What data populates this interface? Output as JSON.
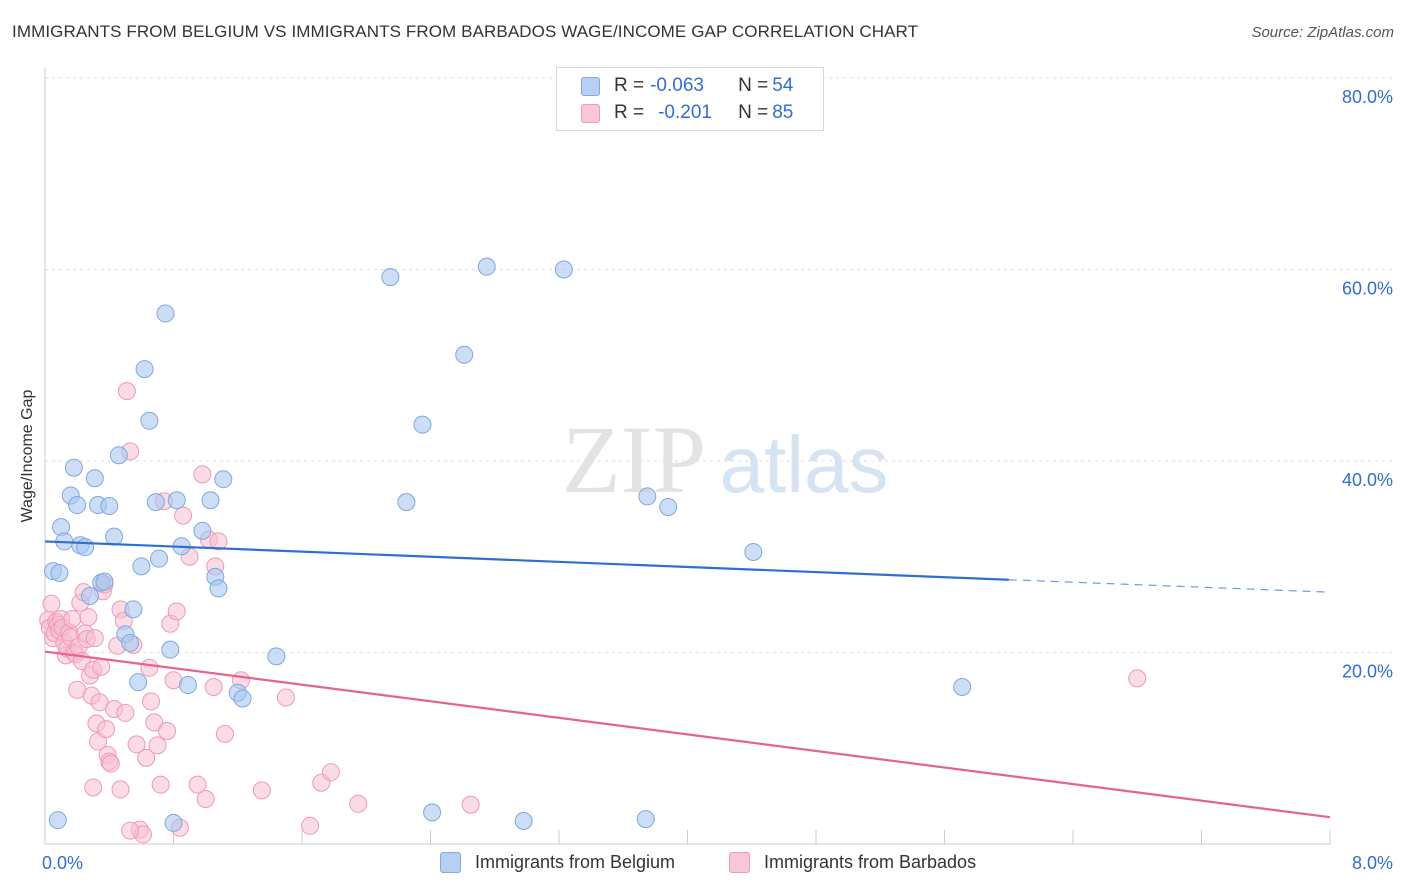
{
  "header": {
    "title": "IMMIGRANTS FROM BELGIUM VS IMMIGRANTS FROM BARBADOS WAGE/INCOME GAP CORRELATION CHART",
    "source": "Source: ZipAtlas.com"
  },
  "watermark": {
    "zip": "ZIP",
    "atlas": "atlas"
  },
  "legend": {
    "belgium": {
      "r_label": "R = ",
      "r_value": "-0.063",
      "n_label": "N = ",
      "n_value": "54"
    },
    "barbados": {
      "r_label": "R = ",
      "r_value": "-0.201",
      "n_label": "N = ",
      "n_value": "85"
    }
  },
  "colors": {
    "belgium_fill": "#a9c8f0",
    "belgium_stroke": "#7fa8de",
    "belgium_line": "#2e6fd1",
    "barbados_fill": "#f7bfd0",
    "barbados_stroke": "#ee9ab5",
    "barbados_line": "#e8628f",
    "axis_label": "#2e6fd1",
    "grid": "#dddddd"
  },
  "chart_data": {
    "type": "scatter",
    "title": "IMMIGRANTS FROM BELGIUM VS IMMIGRANTS FROM BARBADOS WAGE/INCOME GAP CORRELATION CHART",
    "xlabel": "",
    "ylabel": "Wage/Income Gap",
    "xlim": [
      0,
      8
    ],
    "ylim": [
      0,
      80
    ],
    "x_tick_labels": [
      "0.0%",
      "8.0%"
    ],
    "y_ticks": [
      20,
      40,
      60,
      80
    ],
    "y_tick_labels": [
      "20.0%",
      "40.0%",
      "60.0%",
      "80.0%"
    ],
    "series": [
      {
        "name": "Immigrants from Belgium",
        "R": -0.063,
        "N": 54,
        "trend": {
          "x0": 0,
          "y0": 31.6,
          "x1": 6.0,
          "y1": 27.6,
          "dash_to_x": 8.0,
          "dash_to_y": 26.3
        },
        "points": [
          [
            0.05,
            28.5
          ],
          [
            0.09,
            28.3
          ],
          [
            0.1,
            33.1
          ],
          [
            0.12,
            31.6
          ],
          [
            0.16,
            36.4
          ],
          [
            0.18,
            39.3
          ],
          [
            0.2,
            35.4
          ],
          [
            0.22,
            31.2
          ],
          [
            0.25,
            31.0
          ],
          [
            0.28,
            25.9
          ],
          [
            0.31,
            38.2
          ],
          [
            0.33,
            35.4
          ],
          [
            0.35,
            27.3
          ],
          [
            0.37,
            27.4
          ],
          [
            0.4,
            35.3
          ],
          [
            0.43,
            32.1
          ],
          [
            0.46,
            40.6
          ],
          [
            0.5,
            21.9
          ],
          [
            0.53,
            21.0
          ],
          [
            0.55,
            24.5
          ],
          [
            0.58,
            16.9
          ],
          [
            0.6,
            29.0
          ],
          [
            0.62,
            49.6
          ],
          [
            0.65,
            44.2
          ],
          [
            0.69,
            35.7
          ],
          [
            0.71,
            29.8
          ],
          [
            0.75,
            55.4
          ],
          [
            0.78,
            20.3
          ],
          [
            0.8,
            2.2
          ],
          [
            0.82,
            35.9
          ],
          [
            0.85,
            31.1
          ],
          [
            0.89,
            16.6
          ],
          [
            0.98,
            32.7
          ],
          [
            1.03,
            35.9
          ],
          [
            1.06,
            27.9
          ],
          [
            1.08,
            26.7
          ],
          [
            1.11,
            38.1
          ],
          [
            1.2,
            15.8
          ],
          [
            1.23,
            15.2
          ],
          [
            1.44,
            19.6
          ],
          [
            2.15,
            59.2
          ],
          [
            2.25,
            35.7
          ],
          [
            2.35,
            43.8
          ],
          [
            2.41,
            3.3
          ],
          [
            2.61,
            51.1
          ],
          [
            2.75,
            60.3
          ],
          [
            2.98,
            2.4
          ],
          [
            3.23,
            60.0
          ],
          [
            3.74,
            2.6
          ],
          [
            3.75,
            36.3
          ],
          [
            3.88,
            35.2
          ],
          [
            4.41,
            30.5
          ],
          [
            5.71,
            16.4
          ],
          [
            0.08,
            2.5
          ]
        ]
      },
      {
        "name": "Immigrants from Barbados",
        "R": -0.201,
        "N": 85,
        "trend": {
          "x0": 0,
          "y0": 20.1,
          "x1": 8.0,
          "y1": 2.8
        },
        "points": [
          [
            0.02,
            23.4
          ],
          [
            0.03,
            22.6
          ],
          [
            0.04,
            25.1
          ],
          [
            0.05,
            21.5
          ],
          [
            0.06,
            22.0
          ],
          [
            0.07,
            23.2
          ],
          [
            0.08,
            22.9
          ],
          [
            0.09,
            22.3
          ],
          [
            0.1,
            23.5
          ],
          [
            0.11,
            22.6
          ],
          [
            0.12,
            21.0
          ],
          [
            0.13,
            19.7
          ],
          [
            0.14,
            20.4
          ],
          [
            0.15,
            22.1
          ],
          [
            0.16,
            21.6
          ],
          [
            0.17,
            23.5
          ],
          [
            0.18,
            20.0
          ],
          [
            0.19,
            19.8
          ],
          [
            0.2,
            16.1
          ],
          [
            0.21,
            20.6
          ],
          [
            0.22,
            25.2
          ],
          [
            0.23,
            19.1
          ],
          [
            0.24,
            26.3
          ],
          [
            0.25,
            22.0
          ],
          [
            0.26,
            21.4
          ],
          [
            0.27,
            23.7
          ],
          [
            0.28,
            17.6
          ],
          [
            0.29,
            15.5
          ],
          [
            0.3,
            18.2
          ],
          [
            0.31,
            21.5
          ],
          [
            0.32,
            12.6
          ],
          [
            0.33,
            10.7
          ],
          [
            0.34,
            14.8
          ],
          [
            0.35,
            18.5
          ],
          [
            0.36,
            26.4
          ],
          [
            0.37,
            27.1
          ],
          [
            0.38,
            12.0
          ],
          [
            0.39,
            9.3
          ],
          [
            0.4,
            8.6
          ],
          [
            0.41,
            8.4
          ],
          [
            0.43,
            14.1
          ],
          [
            0.45,
            20.7
          ],
          [
            0.47,
            24.5
          ],
          [
            0.49,
            23.3
          ],
          [
            0.5,
            13.7
          ],
          [
            0.51,
            47.3
          ],
          [
            0.53,
            41.0
          ],
          [
            0.55,
            20.8
          ],
          [
            0.57,
            10.4
          ],
          [
            0.59,
            1.5
          ],
          [
            0.61,
            1.0
          ],
          [
            0.63,
            9.0
          ],
          [
            0.65,
            18.4
          ],
          [
            0.66,
            14.9
          ],
          [
            0.68,
            12.7
          ],
          [
            0.7,
            10.3
          ],
          [
            0.72,
            6.2
          ],
          [
            0.74,
            35.8
          ],
          [
            0.76,
            11.8
          ],
          [
            0.78,
            23.0
          ],
          [
            0.8,
            17.1
          ],
          [
            0.82,
            24.3
          ],
          [
            0.84,
            1.7
          ],
          [
            0.86,
            34.3
          ],
          [
            0.9,
            30.0
          ],
          [
            0.95,
            6.2
          ],
          [
            0.98,
            38.6
          ],
          [
            1.0,
            4.7
          ],
          [
            1.02,
            31.8
          ],
          [
            1.05,
            16.4
          ],
          [
            1.06,
            29.0
          ],
          [
            1.08,
            31.6
          ],
          [
            1.12,
            11.5
          ],
          [
            1.22,
            17.1
          ],
          [
            1.35,
            5.6
          ],
          [
            1.5,
            15.3
          ],
          [
            1.65,
            1.9
          ],
          [
            1.72,
            6.4
          ],
          [
            1.78,
            7.5
          ],
          [
            1.95,
            4.2
          ],
          [
            2.65,
            4.1
          ],
          [
            6.8,
            17.3
          ],
          [
            0.3,
            5.9
          ],
          [
            0.47,
            5.7
          ],
          [
            0.53,
            1.4
          ]
        ]
      }
    ]
  },
  "bottom_legend": {
    "belgium_label": "Immigrants from Belgium",
    "barbados_label": "Immigrants from Barbados"
  }
}
